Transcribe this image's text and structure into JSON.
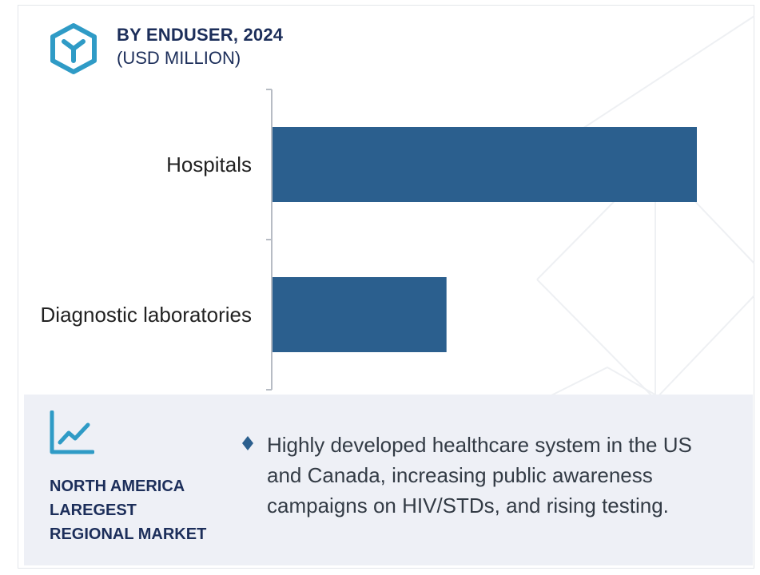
{
  "header": {
    "title": "BY ENDUSER, 2024",
    "subtitle": "(USD MILLION)",
    "logo_icon": "hexagon-y-logo-icon"
  },
  "colors": {
    "bar": "#2b5f8e",
    "accent": "#2f9bc6",
    "navy": "#1c2e5a",
    "panel_bg": "#eef0f6"
  },
  "chart_data": {
    "type": "bar",
    "orientation": "horizontal",
    "categories": [
      "Hospitals",
      "Diagnostic laboratories"
    ],
    "values": [
      100,
      41
    ],
    "xlim": [
      0,
      100
    ],
    "title": "BY ENDUSER, 2024",
    "subtitle": "(USD MILLION)",
    "grid": false,
    "legend": "none",
    "value_labels_shown": false
  },
  "panel": {
    "icon": "line-chart-trend-icon",
    "region_title_lines": [
      "NORTH AMERICA",
      "LAREGEST",
      "REGIONAL MARKET"
    ],
    "bullet_icon": "diamond-bullet-icon",
    "bullet_text": "Highly developed healthcare system in the US and Canada, increasing public awareness campaigns on HIV/STDs, and rising testing."
  }
}
